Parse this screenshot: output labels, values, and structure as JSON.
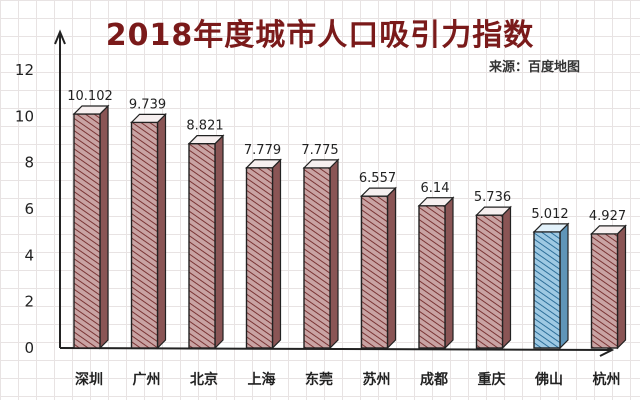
{
  "title": "2018年度城市人口吸引力指数",
  "source": "来源：百度地图",
  "colors": {
    "bar_face": "#c9a3a3",
    "bar_hatch": "#7a3535",
    "bar_top": "#f6efef",
    "highlight_face": "#9ec9e3",
    "highlight_hatch": "#2e6f99",
    "highlight_top": "#e2f1fa",
    "axis": "#222222",
    "title": "#7a1a1a"
  },
  "chart_data": {
    "type": "bar",
    "categories": [
      "深圳",
      "广州",
      "北京",
      "上海",
      "东莞",
      "苏州",
      "成都",
      "重庆",
      "佛山",
      "杭州"
    ],
    "values": [
      10.102,
      9.739,
      8.821,
      7.779,
      7.775,
      6.557,
      6.14,
      5.736,
      5.012,
      4.927
    ],
    "value_labels": [
      "10.102",
      "9.739",
      "8.821",
      "7.779",
      "7.775",
      "6.557",
      "6.14",
      "5.736",
      "5.012",
      "4.927"
    ],
    "highlight_index": 8,
    "ylim": [
      0,
      12
    ],
    "yticks": [
      0,
      2,
      4,
      6,
      8,
      10,
      12
    ],
    "title": "2018年度城市人口吸引力指数",
    "xlabel": "",
    "ylabel": "",
    "grid": true,
    "legend": "none"
  }
}
